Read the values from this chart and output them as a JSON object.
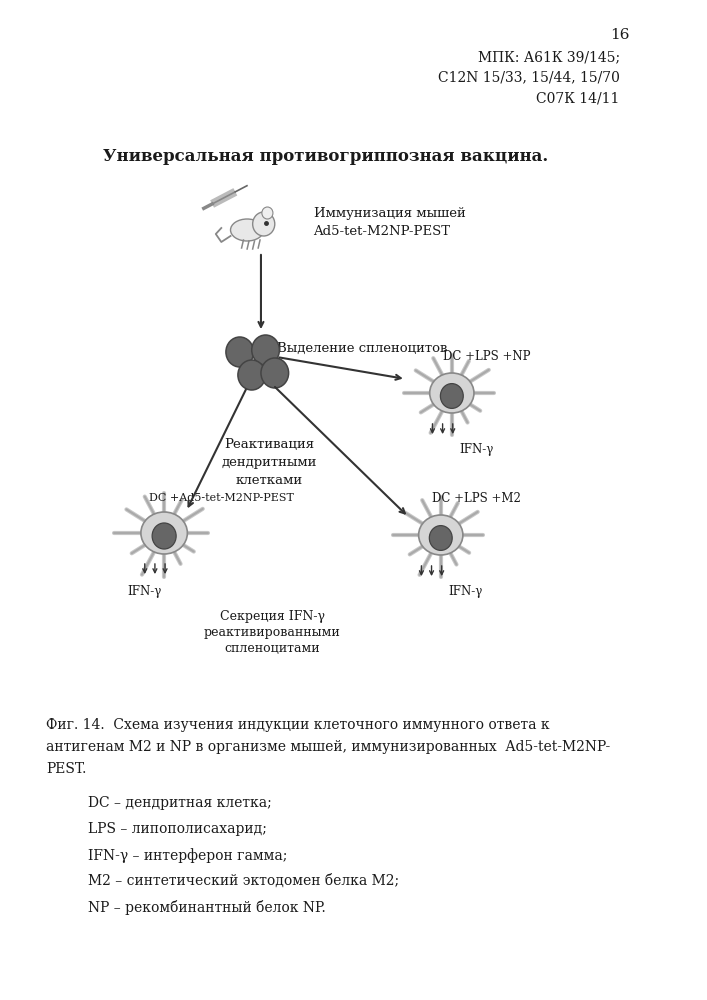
{
  "page_number": "16",
  "mpk_text": "МПК: А61К 39/145;\nС12N 15/33, 15/44, 15/70\nС07К 14/11",
  "title": "Универсальная противогриппозная вакцина.",
  "caption_lines": [
    "Фиг. 14.  Схема изучения индукции клеточного иммунного ответа к",
    "антигенам М2 и NP в организме мышей, иммунизированных  Ad5-tet-M2NP-",
    "PEST."
  ],
  "legend_items": [
    "DC – дендритная клетка;",
    "LPS – липополисахарид;",
    "IFN-γ – интерферон гамма;",
    "М2 – синтетический эктодомен белка М2;",
    "NP – рекомбинантный белок NP."
  ],
  "label_mouse_inject": "Иммунизация мышей\nAd5-tet-M2NP-PEST",
  "label_splenocytes": "Выделение спленоцитов",
  "label_reactivation": "Реактивация\nдендритными\nклетками",
  "label_secretion": "Секреция IFN-γ\nреактивированными\nспленоцитами",
  "label_dc_np": "DC +LPS +NP",
  "label_dc_pest": "DC +Ad5-tet-M2NP-PEST",
  "label_dc_m2": "DC +LPS +M2",
  "label_ifn_top": "IFN-γ",
  "label_ifn_left": "IFN-γ",
  "label_ifn_right": "IFN-γ",
  "bg_color": "#ffffff",
  "text_color": "#1a1a1a",
  "cell_color": "#666666"
}
